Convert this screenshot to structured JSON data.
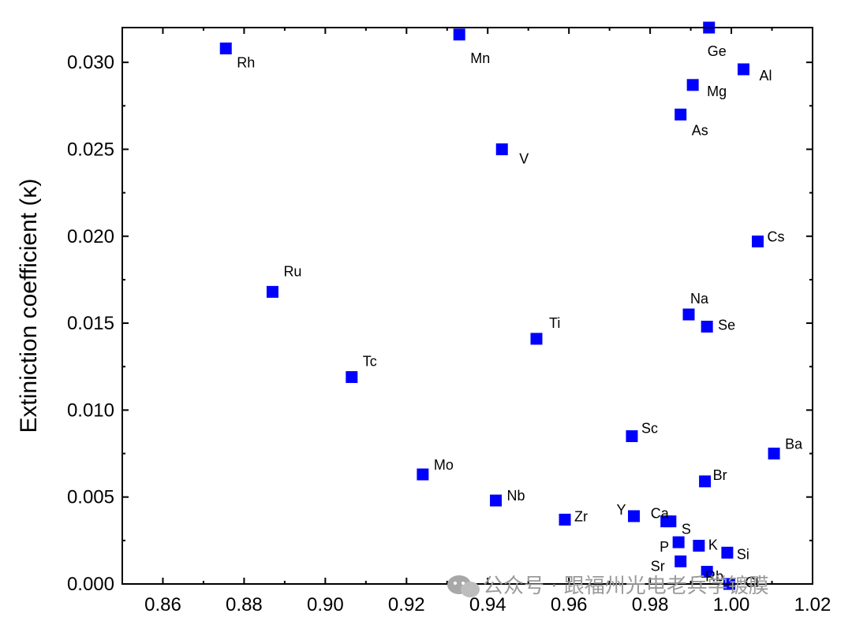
{
  "chart_data": {
    "type": "scatter",
    "title": "",
    "xlabel": "",
    "ylabel": "Extiniction coefficient (κ)",
    "xlim": [
      0.85,
      1.02
    ],
    "ylim": [
      0.0,
      0.032
    ],
    "x_ticks": [
      0.86,
      0.88,
      0.9,
      0.92,
      0.94,
      0.96,
      0.98,
      1.0,
      1.02
    ],
    "x_tick_labels": [
      "0.86",
      "0.88",
      "0.90",
      "0.92",
      "0.94",
      "0.96",
      "0.98",
      "1.00",
      "1.02"
    ],
    "y_ticks": [
      0.0,
      0.005,
      0.01,
      0.015,
      0.02,
      0.025,
      0.03
    ],
    "y_tick_labels": [
      "0.000",
      "0.005",
      "0.010",
      "0.015",
      "0.020",
      "0.025",
      "0.030"
    ],
    "grid": false,
    "marker_color": "#0000ff",
    "points": [
      {
        "label": "Rh",
        "x": 0.8755,
        "y": 0.0308
      },
      {
        "label": "Mn",
        "x": 0.933,
        "y": 0.0316
      },
      {
        "label": "Ge",
        "x": 0.9945,
        "y": 0.032
      },
      {
        "label": "Al",
        "x": 1.003,
        "y": 0.0296
      },
      {
        "label": "Mg",
        "x": 0.9905,
        "y": 0.0287
      },
      {
        "label": "As",
        "x": 0.9875,
        "y": 0.027
      },
      {
        "label": "V",
        "x": 0.9435,
        "y": 0.025
      },
      {
        "label": "Cs",
        "x": 1.0065,
        "y": 0.0197
      },
      {
        "label": "Ru",
        "x": 0.887,
        "y": 0.0168
      },
      {
        "label": "Na",
        "x": 0.9895,
        "y": 0.0155
      },
      {
        "label": "Se",
        "x": 0.994,
        "y": 0.0148
      },
      {
        "label": "Ti",
        "x": 0.952,
        "y": 0.0141
      },
      {
        "label": "Tc",
        "x": 0.9065,
        "y": 0.0119
      },
      {
        "label": "Sc",
        "x": 0.9755,
        "y": 0.0085
      },
      {
        "label": "Ba",
        "x": 1.0105,
        "y": 0.0075
      },
      {
        "label": "Mo",
        "x": 0.924,
        "y": 0.0063
      },
      {
        "label": "Br",
        "x": 0.9935,
        "y": 0.0059
      },
      {
        "label": "Nb",
        "x": 0.942,
        "y": 0.0048
      },
      {
        "label": "Zr",
        "x": 0.959,
        "y": 0.0037
      },
      {
        "label": "Y",
        "x": 0.976,
        "y": 0.0039
      },
      {
        "label": "Ca",
        "x": 0.984,
        "y": 0.0036
      },
      {
        "label": "S",
        "x": 0.985,
        "y": 0.0036
      },
      {
        "label": "P",
        "x": 0.987,
        "y": 0.0024
      },
      {
        "label": "K",
        "x": 0.992,
        "y": 0.0022
      },
      {
        "label": "Si",
        "x": 0.999,
        "y": 0.0018
      },
      {
        "label": "Sr",
        "x": 0.9875,
        "y": 0.0013
      },
      {
        "label": "Rb",
        "x": 0.994,
        "y": 0.0007
      },
      {
        "label": "Cl",
        "x": 0.9995,
        "y": 0.0
      }
    ]
  },
  "watermark": {
    "text": "公众号 · 跟福州光电老兵学镀膜",
    "icon": "wechat-icon"
  }
}
